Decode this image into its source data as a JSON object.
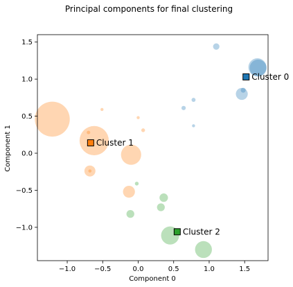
{
  "chart_data": {
    "type": "scatter",
    "title": "Principal components for final clustering",
    "xlabel": "Component 0",
    "ylabel": "Component 1",
    "xlim": [
      -1.42,
      1.83
    ],
    "ylim": [
      -1.45,
      1.6
    ],
    "x_ticks": [
      -1.0,
      -0.5,
      0.0,
      0.5,
      1.0,
      1.5
    ],
    "y_ticks": [
      -1.0,
      -0.5,
      0.0,
      0.5,
      1.0,
      1.5
    ],
    "x_tick_labels": [
      "−1.0",
      "−0.5",
      "0.0",
      "0.5",
      "1.0",
      "1.5"
    ],
    "y_tick_labels": [
      "−1.0",
      "−0.5",
      "0.0",
      "0.5",
      "1.0",
      "1.5"
    ],
    "grid": false,
    "colors": {
      "cluster0": "#1f77b4",
      "cluster1": "#ff7f0e",
      "cluster2": "#2ca02c"
    },
    "points": [
      {
        "x": 1.1,
        "y": 1.44,
        "cluster": 0,
        "size": 20
      },
      {
        "x": 1.69,
        "y": 1.15,
        "cluster": 0,
        "size": 140
      },
      {
        "x": 1.68,
        "y": 1.16,
        "cluster": 0,
        "size": 160
      },
      {
        "x": 1.46,
        "y": 0.8,
        "cluster": 0,
        "size": 70
      },
      {
        "x": 1.48,
        "y": 0.85,
        "cluster": 0,
        "size": 12
      },
      {
        "x": 0.78,
        "y": 0.72,
        "cluster": 0,
        "size": 8
      },
      {
        "x": 0.64,
        "y": 0.61,
        "cluster": 0,
        "size": 9
      },
      {
        "x": 0.78,
        "y": 0.37,
        "cluster": 0,
        "size": 3
      },
      {
        "x": -1.21,
        "y": 0.46,
        "cluster": 1,
        "size": 600
      },
      {
        "x": -0.62,
        "y": 0.17,
        "cluster": 1,
        "size": 420
      },
      {
        "x": -0.1,
        "y": -0.02,
        "cluster": 1,
        "size": 200
      },
      {
        "x": -0.51,
        "y": 0.59,
        "cluster": 1,
        "size": 4
      },
      {
        "x": -0.7,
        "y": 0.28,
        "cluster": 1,
        "size": 6
      },
      {
        "x": 0.0,
        "y": 0.48,
        "cluster": 1,
        "size": 4
      },
      {
        "x": 0.07,
        "y": 0.31,
        "cluster": 1,
        "size": 7
      },
      {
        "x": -0.68,
        "y": -0.24,
        "cluster": 1,
        "size": 60
      },
      {
        "x": -0.68,
        "y": -0.24,
        "cluster": 1,
        "size": 5
      },
      {
        "x": -0.13,
        "y": -0.52,
        "cluster": 1,
        "size": 70
      },
      {
        "x": -0.02,
        "y": -0.41,
        "cluster": 2,
        "size": 7
      },
      {
        "x": 0.36,
        "y": -0.6,
        "cluster": 2,
        "size": 35
      },
      {
        "x": 0.32,
        "y": -0.73,
        "cluster": 2,
        "size": 30
      },
      {
        "x": -0.11,
        "y": -0.82,
        "cluster": 2,
        "size": 30
      },
      {
        "x": 0.45,
        "y": -1.11,
        "cluster": 2,
        "size": 160
      },
      {
        "x": 0.92,
        "y": -1.3,
        "cluster": 2,
        "size": 140
      }
    ],
    "centroids": [
      {
        "name": "Cluster 0",
        "x": 1.52,
        "y": 1.03,
        "cluster": 0
      },
      {
        "name": "Cluster 1",
        "x": -0.67,
        "y": 0.14,
        "cluster": 1
      },
      {
        "name": "Cluster 2",
        "x": 0.55,
        "y": -1.06,
        "cluster": 2
      }
    ]
  }
}
